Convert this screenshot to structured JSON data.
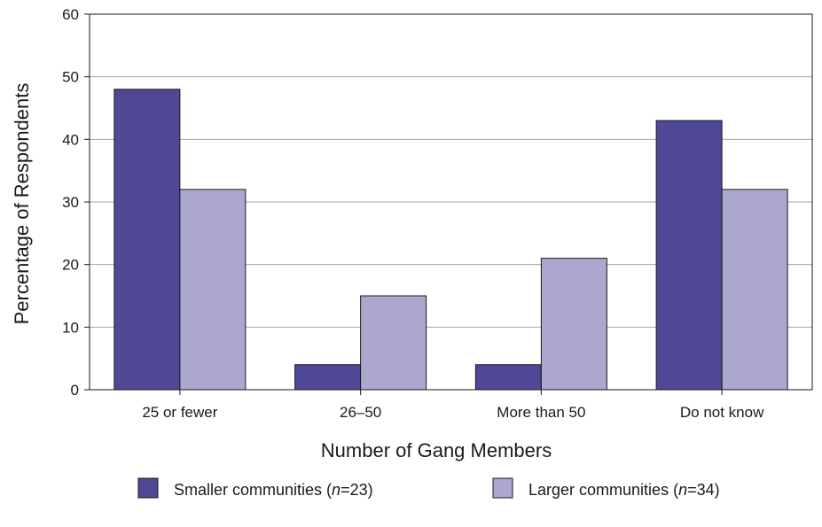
{
  "chart_data": {
    "type": "bar",
    "xlabel": "Number of Gang Members",
    "ylabel": "Percentage of Respondents",
    "ylim": [
      0,
      60
    ],
    "yticks": [
      0,
      10,
      20,
      30,
      40,
      50,
      60
    ],
    "grid": true,
    "legend_position": "bottom",
    "categories": [
      "25 or fewer",
      "26–50",
      "More than 50",
      "Do not know"
    ],
    "series": [
      {
        "name": "Smaller communities (n=23)",
        "name_prefix": "Smaller communities (",
        "name_italic": "n",
        "name_suffix": "=23)",
        "color": "#4f4896",
        "values": [
          48,
          4,
          4,
          43
        ]
      },
      {
        "name": "Larger communities (n=34)",
        "name_prefix": "Larger communities (",
        "name_italic": "n",
        "name_suffix": "=34)",
        "color": "#aba7ce",
        "values": [
          32,
          15,
          21,
          32
        ]
      }
    ]
  }
}
